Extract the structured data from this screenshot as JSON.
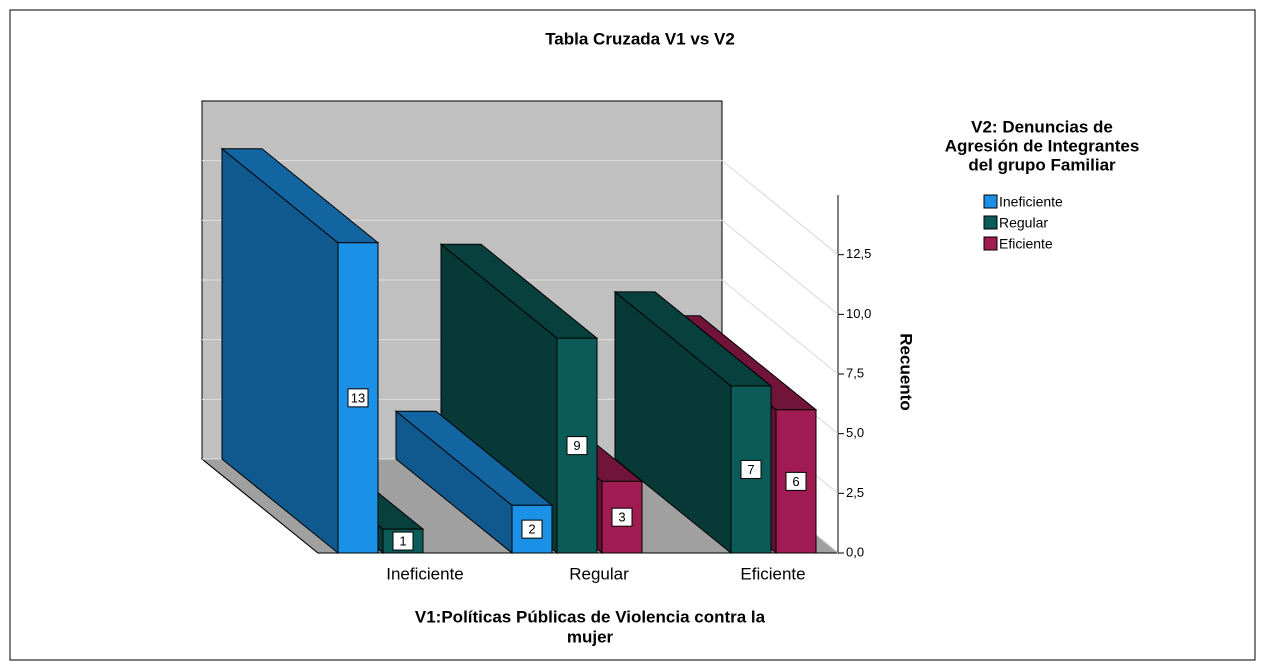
{
  "chart_data": {
    "type": "bar3d",
    "title": "Tabla Cruzada V1 vs V2",
    "x_label": [
      "V1:Políticas Públicas de Violencia contra la",
      "mujer"
    ],
    "y_label": "Recuento",
    "legend_title": [
      "V2: Denuncias de",
      "Agresión de Integrantes",
      "del grupo Familiar"
    ],
    "categories": [
      "Ineficiente",
      "Regular",
      "Eficiente"
    ],
    "series": [
      {
        "name": "Ineficiente",
        "color": "#1a90e6",
        "values": [
          13,
          2,
          null
        ]
      },
      {
        "name": "Regular",
        "color": "#0b5c59",
        "values": [
          1,
          9,
          7
        ]
      },
      {
        "name": "Eficiente",
        "color": "#a01c52",
        "values": [
          null,
          3,
          6
        ]
      }
    ],
    "ylim": [
      0,
      15
    ],
    "yticks": [
      {
        "value": 0,
        "label": "0,0"
      },
      {
        "value": 2.5,
        "label": "2,5"
      },
      {
        "value": 5,
        "label": "5,0"
      },
      {
        "value": 7.5,
        "label": "7,5"
      },
      {
        "value": 10,
        "label": "10,0"
      },
      {
        "value": 12.5,
        "label": "12,5"
      }
    ],
    "grid": true,
    "legend": "right"
  }
}
